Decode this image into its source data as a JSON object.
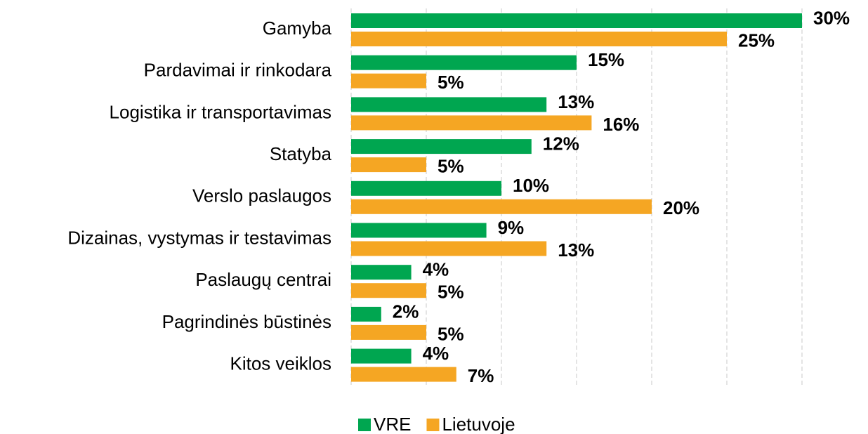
{
  "chart_data": {
    "type": "hbar",
    "categories": [
      "Gamyba",
      "Pardavimai ir rinkodara",
      "Logistika ir transportavimas",
      "Statyba",
      "Verslo paslaugos",
      "Dizainas, vystymas ir testavimas",
      "Paslaugų centrai",
      "Pagrindinės būstinės",
      "Kitos veiklos"
    ],
    "series": [
      {
        "name": "VRE",
        "color": "#00a650",
        "values": [
          30,
          15,
          13,
          12,
          10,
          9,
          4,
          2,
          4
        ],
        "value_labels": [
          "30%",
          "15%",
          "13%",
          "12%",
          "10%",
          "9%",
          "4%",
          "2%",
          "4%"
        ]
      },
      {
        "name": "Lietuvoje",
        "color": "#f5a623",
        "values": [
          25,
          5,
          16,
          5,
          20,
          13,
          5,
          5,
          7
        ],
        "value_labels": [
          "25%",
          "5%",
          "16%",
          "5%",
          "20%",
          "13%",
          "5%",
          "5%",
          "7%"
        ]
      }
    ],
    "xlim": [
      0,
      30
    ],
    "xticks": [
      0,
      5,
      10,
      15,
      20,
      25,
      30
    ],
    "grid": true,
    "legend": "bottom"
  }
}
